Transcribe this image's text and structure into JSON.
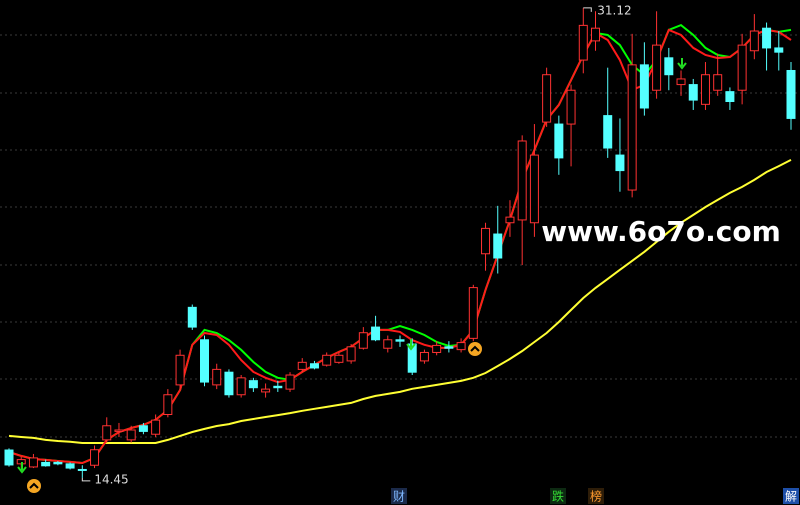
{
  "chart_data": {
    "type": "candlestick",
    "ylim": [
      13.49,
      31.4
    ],
    "up_color": "#ff3232",
    "down_color": "#54ffff",
    "open": [
      15.44,
      14.95,
      14.84,
      15.0,
      15.0,
      14.95,
      14.75,
      14.9,
      15.8,
      16.1,
      15.8,
      16.3,
      16.0,
      16.7,
      17.75,
      20.5,
      19.35,
      17.75,
      18.2,
      17.4,
      17.9,
      17.5,
      17.7,
      17.6,
      18.3,
      18.5,
      18.45,
      18.55,
      18.6,
      19.05,
      19.8,
      19.05,
      19.35,
      19.2,
      18.6,
      18.9,
      19.1,
      19.0,
      19.4,
      22.4,
      23.1,
      23.5,
      23.6,
      23.5,
      27.07,
      27.0,
      27.0,
      29.27,
      29.95,
      27.3,
      25.9,
      24.66,
      29.1,
      28.2,
      29.35,
      28.4,
      28.4,
      27.7,
      28.2,
      28.15,
      28.2,
      29.6,
      30.4,
      29.7,
      28.9
    ],
    "high": [
      15.5,
      15.2,
      15.3,
      15.1,
      15.05,
      15.0,
      14.9,
      15.6,
      16.6,
      16.4,
      16.3,
      16.4,
      16.7,
      17.6,
      19.0,
      20.6,
      19.5,
      18.5,
      18.3,
      18.1,
      18.0,
      17.8,
      17.9,
      18.2,
      18.7,
      18.6,
      18.9,
      18.9,
      19.2,
      19.8,
      20.2,
      19.5,
      19.5,
      19.4,
      19.0,
      19.3,
      19.3,
      19.4,
      21.3,
      23.5,
      24.1,
      24.3,
      26.6,
      27.0,
      29.0,
      27.3,
      28.4,
      31.12,
      31.0,
      29.0,
      27.2,
      30.2,
      29.9,
      31.0,
      29.7,
      28.9,
      28.6,
      29.2,
      29.5,
      28.3,
      30.2,
      30.9,
      30.6,
      30.3,
      29.2
    ],
    "low": [
      14.85,
      14.8,
      14.8,
      14.85,
      14.9,
      14.75,
      14.45,
      14.8,
      15.7,
      15.9,
      15.7,
      16.0,
      15.9,
      16.6,
      17.6,
      19.7,
      17.7,
      17.6,
      17.3,
      17.3,
      17.5,
      17.3,
      17.5,
      17.5,
      18.2,
      18.3,
      18.4,
      18.5,
      18.5,
      19.0,
      19.3,
      18.9,
      19.1,
      18.1,
      18.5,
      18.8,
      18.9,
      18.9,
      19.3,
      21.8,
      21.7,
      23.0,
      22.0,
      23.0,
      26.9,
      25.2,
      25.5,
      28.8,
      29.6,
      25.8,
      24.6,
      24.4,
      27.3,
      27.9,
      28.2,
      28.0,
      27.5,
      27.5,
      28.0,
      27.5,
      27.7,
      29.3,
      28.9,
      28.9,
      26.8
    ],
    "close": [
      14.91,
      15.1,
      15.16,
      14.88,
      14.95,
      14.8,
      14.72,
      15.45,
      16.3,
      16.15,
      16.15,
      16.1,
      16.5,
      17.4,
      18.8,
      19.8,
      17.85,
      18.3,
      17.4,
      18.0,
      17.65,
      17.6,
      17.65,
      18.1,
      18.55,
      18.35,
      18.8,
      18.8,
      19.1,
      19.6,
      19.35,
      19.35,
      19.3,
      18.2,
      18.9,
      19.15,
      19.05,
      19.25,
      21.2,
      23.3,
      22.25,
      23.7,
      26.4,
      25.9,
      28.75,
      25.8,
      28.2,
      30.5,
      30.4,
      26.15,
      25.35,
      29.1,
      27.57,
      29.8,
      28.75,
      28.6,
      27.85,
      28.75,
      28.75,
      27.8,
      29.8,
      30.3,
      29.7,
      29.55,
      27.2
    ],
    "lines": [
      {
        "color": "#ffff33",
        "values": [
          15.94,
          15.9,
          15.87,
          15.8,
          15.76,
          15.73,
          15.69,
          15.69,
          15.69,
          15.69,
          15.69,
          15.69,
          15.69,
          15.8,
          15.94,
          16.08,
          16.19,
          16.29,
          16.36,
          16.47,
          16.54,
          16.61,
          16.68,
          16.75,
          16.83,
          16.9,
          16.97,
          17.04,
          17.11,
          17.25,
          17.36,
          17.43,
          17.5,
          17.61,
          17.68,
          17.75,
          17.82,
          17.89,
          18.0,
          18.17,
          18.42,
          18.67,
          18.95,
          19.27,
          19.59,
          19.98,
          20.41,
          20.83,
          21.19,
          21.51,
          21.83,
          22.15,
          22.47,
          22.82,
          23.18,
          23.5,
          23.78,
          24.06,
          24.31,
          24.56,
          24.77,
          25.02,
          25.3,
          25.51,
          25.73
        ]
      },
      {
        "color": "#00ff00",
        "values": [
          15.37,
          15.23,
          15.12,
          15.09,
          15.05,
          15.02,
          14.98,
          15.16,
          15.8,
          16.08,
          16.22,
          16.33,
          16.51,
          16.86,
          17.57,
          19.17,
          19.7,
          19.59,
          19.34,
          18.99,
          18.56,
          18.21,
          18.0,
          17.93,
          18.21,
          18.46,
          18.71,
          18.92,
          19.1,
          19.41,
          19.7,
          19.7,
          19.84,
          19.7,
          19.52,
          19.27,
          19.13,
          19.17,
          19.7,
          21.12,
          22.36,
          23.6,
          25.02,
          26.08,
          27.15,
          27.68,
          28.56,
          29.45,
          30.23,
          30.16,
          29.8,
          29.09,
          28.74,
          29.27,
          30.34,
          30.51,
          30.16,
          29.7,
          29.45,
          29.38,
          29.7,
          30.16,
          30.34,
          30.27,
          30.34
        ]
      },
      {
        "color": "#ff1a1a",
        "values": [
          15.37,
          15.23,
          15.12,
          15.09,
          15.05,
          15.02,
          14.98,
          15.16,
          15.8,
          16.08,
          16.22,
          16.33,
          16.51,
          16.86,
          17.57,
          19.17,
          19.59,
          19.52,
          19.17,
          18.63,
          18.21,
          18.0,
          17.85,
          17.93,
          18.21,
          18.46,
          18.71,
          18.92,
          19.1,
          19.41,
          19.7,
          19.7,
          19.63,
          19.34,
          19.17,
          19.06,
          19.06,
          19.17,
          19.7,
          21.12,
          22.36,
          23.6,
          25.02,
          26.08,
          27.15,
          27.68,
          28.56,
          29.45,
          30.23,
          29.98,
          29.27,
          28.21,
          28.39,
          29.27,
          30.34,
          30.16,
          29.7,
          29.45,
          29.34,
          29.38,
          29.7,
          30.16,
          30.34,
          30.27,
          29.98
        ]
      }
    ],
    "annotations": [
      31.12,
      14.45
    ],
    "watermark": "www.6o7o.com",
    "markers": [
      "财",
      "跌",
      "榜",
      "解"
    ]
  }
}
